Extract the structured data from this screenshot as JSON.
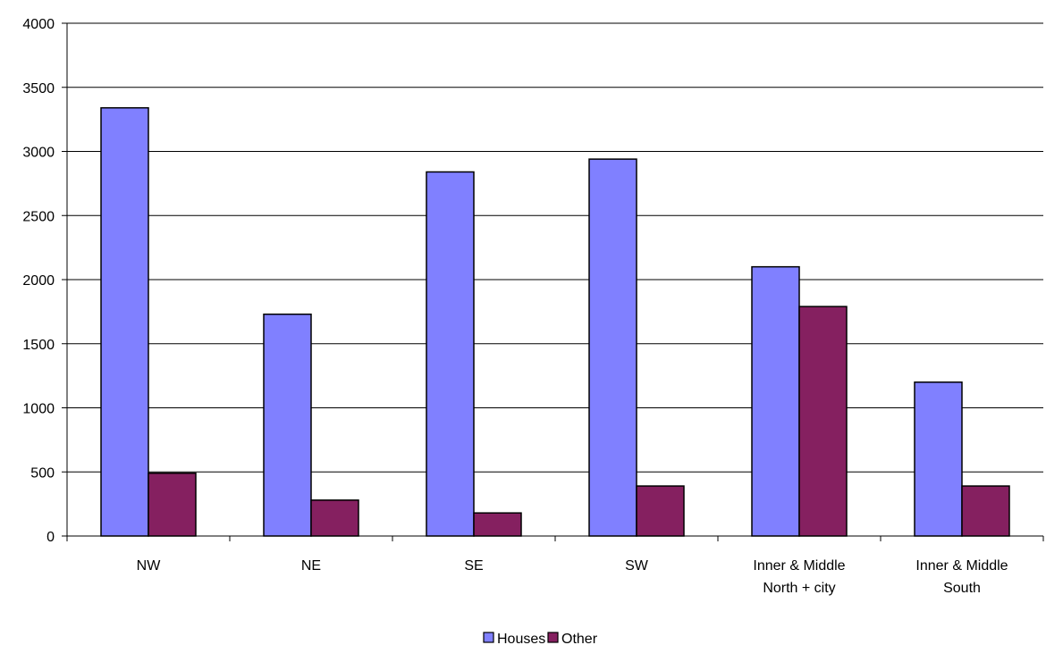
{
  "chart_data": {
    "type": "bar",
    "categories": [
      [
        "NW"
      ],
      [
        "NE"
      ],
      [
        "SE"
      ],
      [
        "SW"
      ],
      [
        "Inner & Middle",
        "North + city"
      ],
      [
        "Inner & Middle",
        "South"
      ]
    ],
    "series": [
      {
        "name": "Houses",
        "color": "#8080ff",
        "values": [
          3340,
          1730,
          2840,
          2940,
          2100,
          1200
        ]
      },
      {
        "name": "Other",
        "color": "#852060",
        "values": [
          490,
          280,
          180,
          390,
          1790,
          390
        ]
      }
    ],
    "ylim": [
      0,
      4000
    ],
    "yticks": [
      "0",
      "500",
      "1000",
      "1500",
      "2000",
      "2500",
      "3000",
      "3500",
      "4000"
    ],
    "grid": true,
    "legend_position": "bottom"
  }
}
